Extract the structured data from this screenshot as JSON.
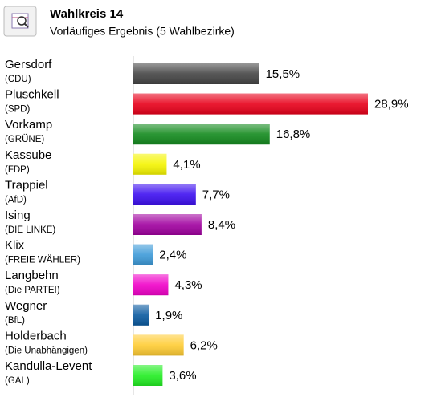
{
  "chart_data": {
    "type": "bar",
    "title": "Wahlkreis 14",
    "subtitle": "Vorläufiges Ergebnis (5 Wahlbezirke)",
    "categories": [
      "Gersdorf",
      "Pluschkell",
      "Vorkamp",
      "Kassube",
      "Trappiel",
      "Ising",
      "Klix",
      "Langbehn",
      "Wegner",
      "Holderbach",
      "Kandulla-Levent"
    ],
    "parties": [
      "(CDU)",
      "(SPD)",
      "(GRÜNE)",
      "(FDP)",
      "(AfD)",
      "(DIE LINKE)",
      "(FREIE WÄHLER)",
      "(Die PARTEI)",
      "(BfL)",
      "(Die Unabhängigen)",
      "(GAL)"
    ],
    "values": [
      15.5,
      28.9,
      16.8,
      4.1,
      7.7,
      8.4,
      2.4,
      4.3,
      1.9,
      6.2,
      3.6
    ],
    "value_labels": [
      "15,5%",
      "28,9%",
      "16,8%",
      "4,1%",
      "7,7%",
      "8,4%",
      "2,4%",
      "4,3%",
      "1,9%",
      "6,2%",
      "3,6%"
    ],
    "colors": [
      "#444444",
      "#e8001a",
      "#138a1e",
      "#f5f500",
      "#3d0ff0",
      "#a0009f",
      "#3d9ad8",
      "#f000c8",
      "#0a5aa0",
      "#ffcc33",
      "#22ee22"
    ]
  }
}
